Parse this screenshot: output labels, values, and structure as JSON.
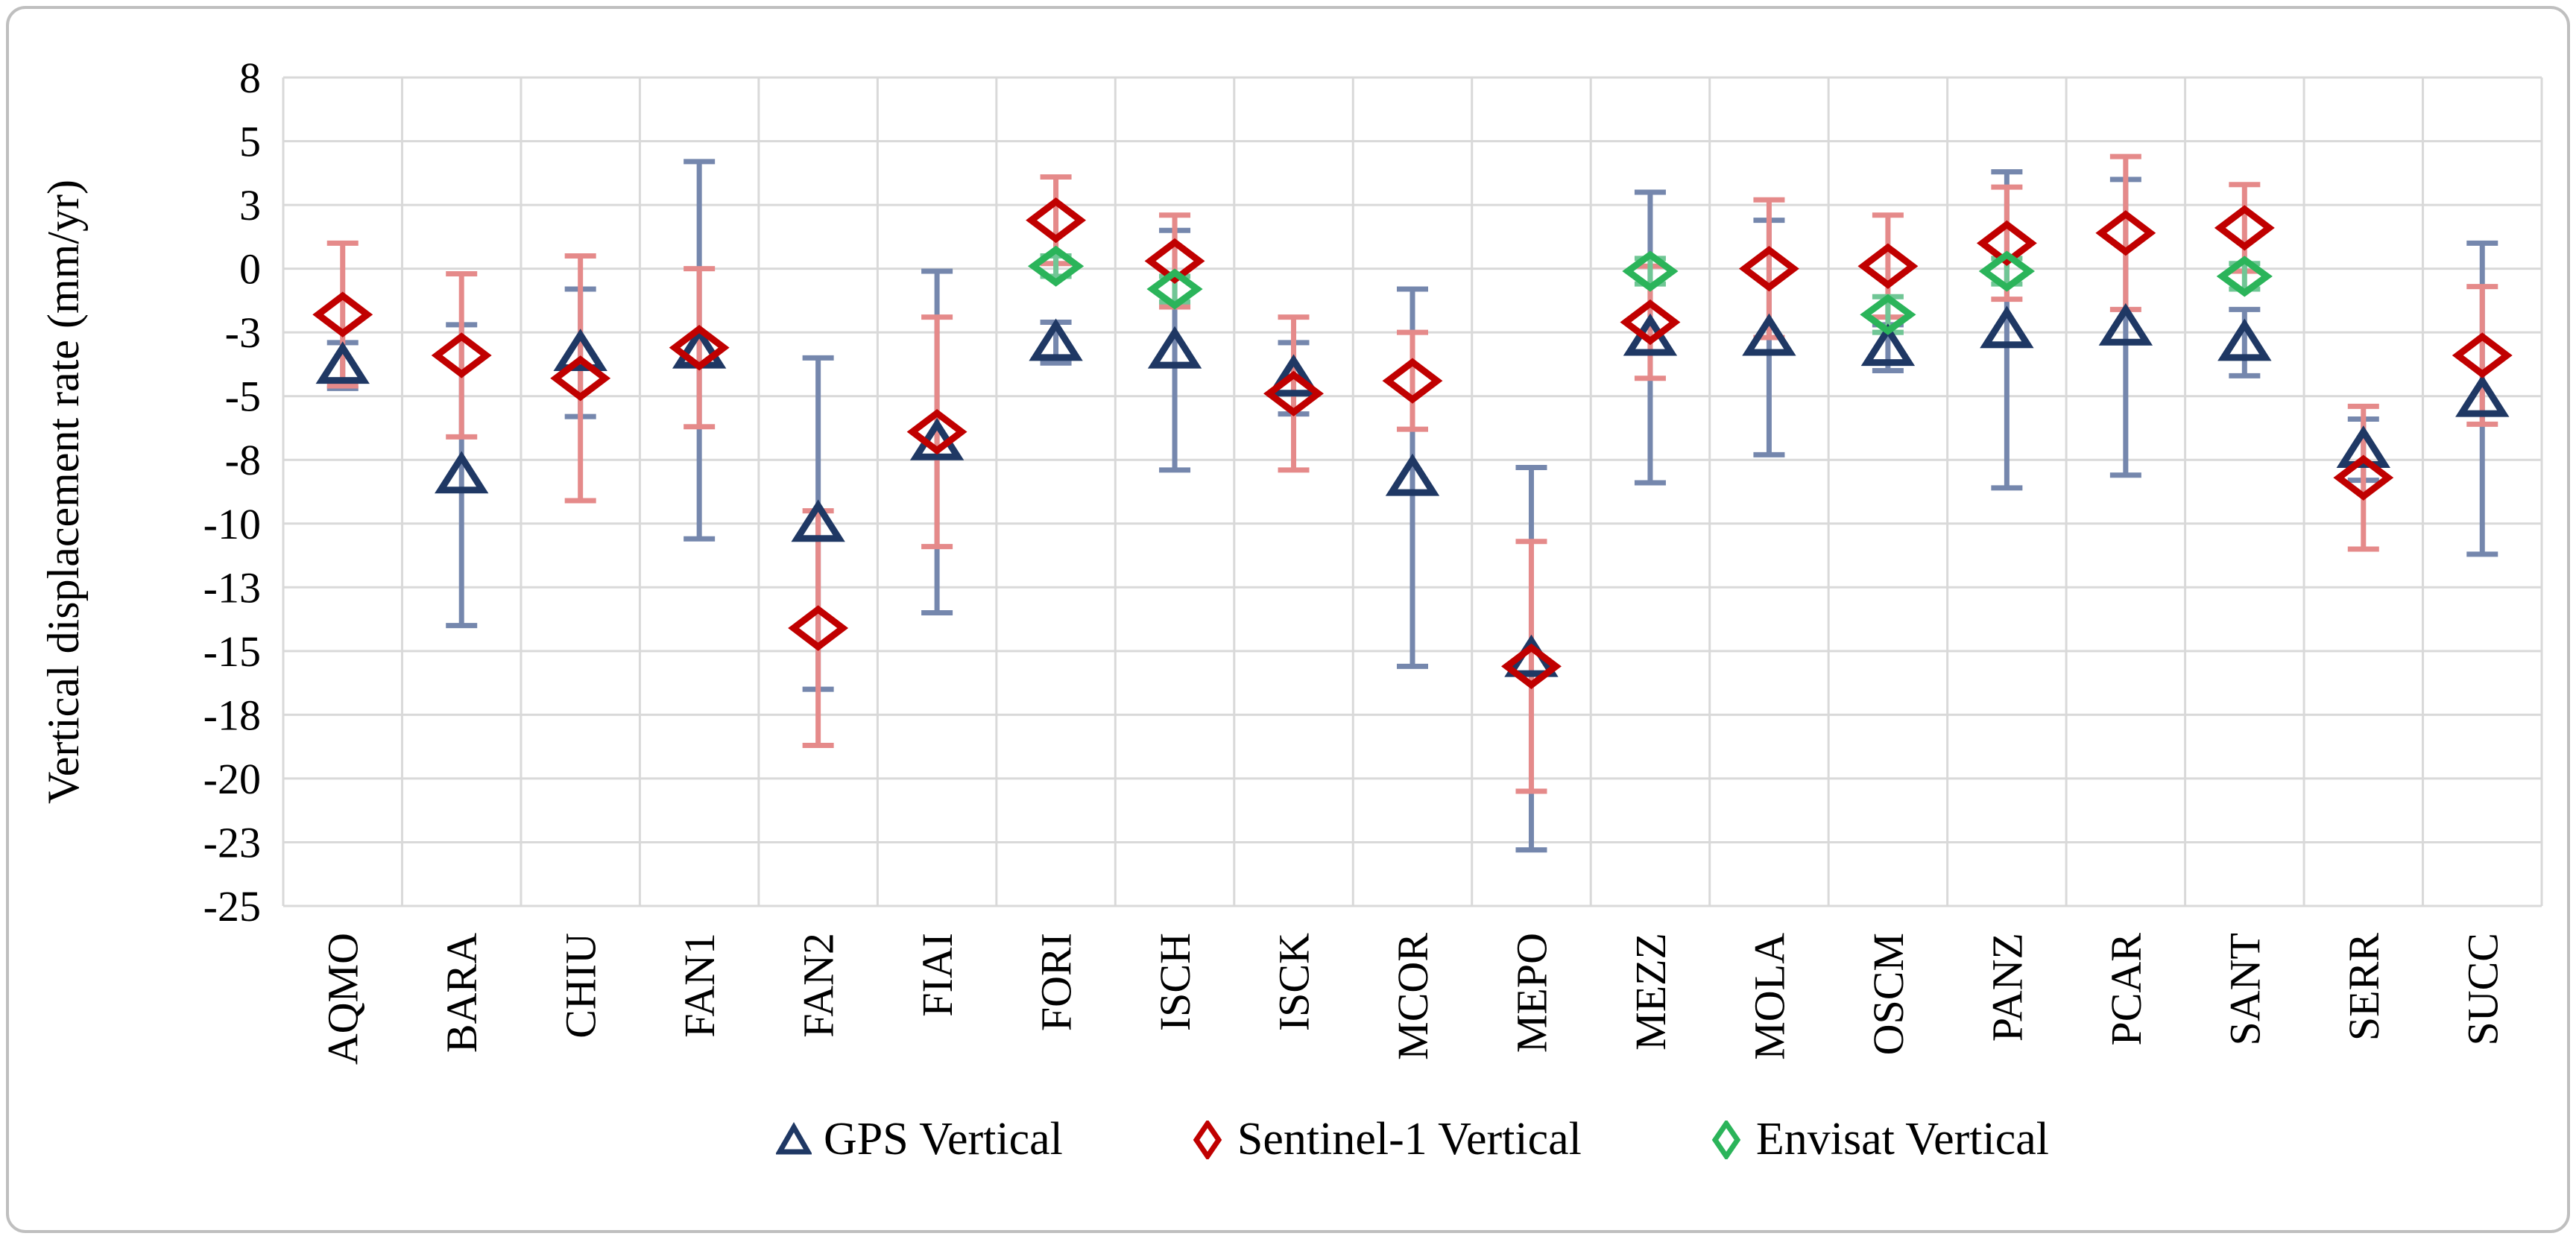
{
  "figure": {
    "background_color": "#FFFFFF",
    "border_color": "#BFBFBF",
    "grid_color": "#D9D9D9"
  },
  "chart_data": {
    "type": "scatter",
    "title": "",
    "xlabel": "",
    "ylabel": "Vertical displacement rate (mm/yr)",
    "ylim": [
      -25,
      7.5
    ],
    "grid": true,
    "legend_position": "bottom",
    "y_ticks": [
      {
        "value": 7.5,
        "label": "8"
      },
      {
        "value": 5,
        "label": "5"
      },
      {
        "value": 2.5,
        "label": "3"
      },
      {
        "value": 0,
        "label": "0"
      },
      {
        "value": -2.5,
        "label": "-3"
      },
      {
        "value": -5,
        "label": "-5"
      },
      {
        "value": -7.5,
        "label": "-8"
      },
      {
        "value": -10,
        "label": "-10"
      },
      {
        "value": -12.5,
        "label": "-13"
      },
      {
        "value": -15,
        "label": "-15"
      },
      {
        "value": -17.5,
        "label": "-18"
      },
      {
        "value": -20,
        "label": "-20"
      },
      {
        "value": -22.5,
        "label": "-23"
      },
      {
        "value": -25,
        "label": "-25"
      }
    ],
    "categories": [
      "AQMO",
      "BARA",
      "CHIU",
      "FAN1",
      "FAN2",
      "FIAI",
      "FORI",
      "ISCH",
      "ISCK",
      "MCOR",
      "MEPO",
      "MEZZ",
      "MOLA",
      "OSCM",
      "PANZ",
      "PCAR",
      "SANT",
      "SERR",
      "SUCC"
    ],
    "series": [
      {
        "name": "GPS Vertical",
        "key": "gps",
        "marker": "triangle",
        "color": "#1F3864",
        "error_color": "#7587AD",
        "values": [
          -3.8,
          -8.1,
          -3.3,
          -3.2,
          -10.0,
          -6.8,
          -2.9,
          -3.2,
          -4.3,
          -8.2,
          -15.3,
          -2.7,
          -2.7,
          -3.1,
          -2.4,
          -2.3,
          -2.9,
          -7.1,
          -5.1
        ],
        "errors": [
          0.9,
          5.9,
          2.5,
          7.4,
          6.5,
          6.7,
          0.8,
          4.7,
          1.4,
          7.4,
          7.5,
          5.7,
          4.6,
          0.9,
          6.2,
          5.8,
          1.3,
          1.2,
          6.1
        ]
      },
      {
        "name": "Sentinel-1 Vertical",
        "key": "sentinel1",
        "marker": "diamond",
        "color": "#C00000",
        "error_color": "#E58A8A",
        "values": [
          -1.8,
          -3.4,
          -4.3,
          -3.1,
          -14.1,
          -6.4,
          1.9,
          0.3,
          -4.9,
          -4.4,
          -15.6,
          -2.1,
          0.0,
          0.1,
          1.0,
          1.4,
          1.6,
          -8.2,
          -3.4
        ],
        "errors": [
          2.8,
          3.2,
          4.8,
          3.1,
          4.6,
          4.5,
          1.7,
          1.8,
          3.0,
          1.9,
          4.9,
          2.2,
          2.7,
          2.0,
          2.2,
          3.0,
          1.7,
          2.8,
          2.7
        ]
      },
      {
        "name": "Envisat Vertical",
        "key": "envisat",
        "marker": "diamond",
        "color": "#2BB45A",
        "error_color": "#70C695",
        "values": [
          null,
          null,
          null,
          null,
          null,
          null,
          0.1,
          -0.8,
          null,
          null,
          null,
          -0.1,
          null,
          -1.8,
          -0.1,
          null,
          -0.3,
          null,
          null
        ],
        "errors": [
          null,
          null,
          null,
          null,
          null,
          null,
          0.4,
          0.5,
          null,
          null,
          null,
          0.5,
          null,
          0.7,
          0.5,
          null,
          0.5,
          null,
          null
        ]
      }
    ]
  }
}
